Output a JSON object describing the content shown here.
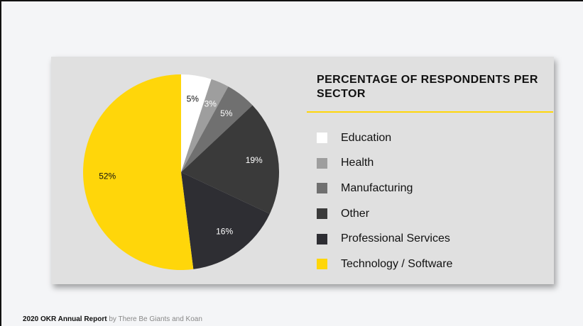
{
  "chart_data": {
    "type": "pie",
    "title": "PERCENTAGE OF RESPONDENTS PER SECTOR",
    "slices": [
      {
        "label": "Education",
        "value": 5,
        "color": "#ffffff",
        "text_color": "#111111",
        "value_label": "5%"
      },
      {
        "label": "Health",
        "value": 3,
        "color": "#9e9e9e",
        "text_color": "#ffffff",
        "value_label": "3%"
      },
      {
        "label": "Manufacturing",
        "value": 5,
        "color": "#707070",
        "text_color": "#ffffff",
        "value_label": "5%"
      },
      {
        "label": "Other",
        "value": 19,
        "color": "#3a3a3a",
        "text_color": "#ffffff",
        "value_label": "19%"
      },
      {
        "label": "Professional Services",
        "value": 16,
        "color": "#2e2e33",
        "text_color": "#ffffff",
        "value_label": "16%"
      },
      {
        "label": "Technology / Software",
        "value": 52,
        "color": "#ffd60a",
        "text_color": "#111111",
        "value_label": "52%"
      }
    ],
    "start_angle_deg": 0,
    "direction": "clockwise",
    "legend": "right"
  },
  "footer": {
    "report": "2020 OKR Annual Report",
    "by": "by There Be Giants and Koan"
  },
  "colors": {
    "accent": "#ffd60a",
    "panel": "#e0e0e0",
    "background": "#f4f5f7"
  }
}
